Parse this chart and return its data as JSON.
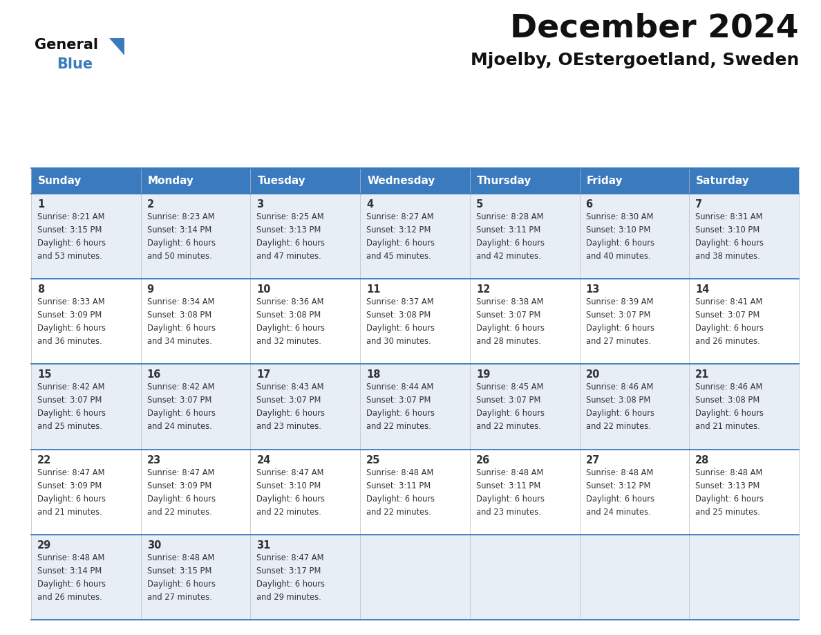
{
  "title": "December 2024",
  "subtitle": "Mjoelby, OEstergoetland, Sweden",
  "header_color": "#3a7abf",
  "header_text_color": "#ffffff",
  "day_names": [
    "Sunday",
    "Monday",
    "Tuesday",
    "Wednesday",
    "Thursday",
    "Friday",
    "Saturday"
  ],
  "cell_bg_row0": "#e8eef5",
  "cell_bg_row1": "#ffffff",
  "cell_bg_row2": "#e8eef5",
  "cell_bg_row3": "#ffffff",
  "cell_bg_row4": "#e8eef5",
  "border_color": "#3a7abf",
  "cell_border_color": "#aaaaaa",
  "text_color": "#333333",
  "days": [
    {
      "day": 1,
      "col": 0,
      "row": 0,
      "sunrise": "8:21 AM",
      "sunset": "3:15 PM",
      "daylight": "6 hours and 53 minutes"
    },
    {
      "day": 2,
      "col": 1,
      "row": 0,
      "sunrise": "8:23 AM",
      "sunset": "3:14 PM",
      "daylight": "6 hours and 50 minutes"
    },
    {
      "day": 3,
      "col": 2,
      "row": 0,
      "sunrise": "8:25 AM",
      "sunset": "3:13 PM",
      "daylight": "6 hours and 47 minutes"
    },
    {
      "day": 4,
      "col": 3,
      "row": 0,
      "sunrise": "8:27 AM",
      "sunset": "3:12 PM",
      "daylight": "6 hours and 45 minutes"
    },
    {
      "day": 5,
      "col": 4,
      "row": 0,
      "sunrise": "8:28 AM",
      "sunset": "3:11 PM",
      "daylight": "6 hours and 42 minutes"
    },
    {
      "day": 6,
      "col": 5,
      "row": 0,
      "sunrise": "8:30 AM",
      "sunset": "3:10 PM",
      "daylight": "6 hours and 40 minutes"
    },
    {
      "day": 7,
      "col": 6,
      "row": 0,
      "sunrise": "8:31 AM",
      "sunset": "3:10 PM",
      "daylight": "6 hours and 38 minutes"
    },
    {
      "day": 8,
      "col": 0,
      "row": 1,
      "sunrise": "8:33 AM",
      "sunset": "3:09 PM",
      "daylight": "6 hours and 36 minutes"
    },
    {
      "day": 9,
      "col": 1,
      "row": 1,
      "sunrise": "8:34 AM",
      "sunset": "3:08 PM",
      "daylight": "6 hours and 34 minutes"
    },
    {
      "day": 10,
      "col": 2,
      "row": 1,
      "sunrise": "8:36 AM",
      "sunset": "3:08 PM",
      "daylight": "6 hours and 32 minutes"
    },
    {
      "day": 11,
      "col": 3,
      "row": 1,
      "sunrise": "8:37 AM",
      "sunset": "3:08 PM",
      "daylight": "6 hours and 30 minutes"
    },
    {
      "day": 12,
      "col": 4,
      "row": 1,
      "sunrise": "8:38 AM",
      "sunset": "3:07 PM",
      "daylight": "6 hours and 28 minutes"
    },
    {
      "day": 13,
      "col": 5,
      "row": 1,
      "sunrise": "8:39 AM",
      "sunset": "3:07 PM",
      "daylight": "6 hours and 27 minutes"
    },
    {
      "day": 14,
      "col": 6,
      "row": 1,
      "sunrise": "8:41 AM",
      "sunset": "3:07 PM",
      "daylight": "6 hours and 26 minutes"
    },
    {
      "day": 15,
      "col": 0,
      "row": 2,
      "sunrise": "8:42 AM",
      "sunset": "3:07 PM",
      "daylight": "6 hours and 25 minutes"
    },
    {
      "day": 16,
      "col": 1,
      "row": 2,
      "sunrise": "8:42 AM",
      "sunset": "3:07 PM",
      "daylight": "6 hours and 24 minutes"
    },
    {
      "day": 17,
      "col": 2,
      "row": 2,
      "sunrise": "8:43 AM",
      "sunset": "3:07 PM",
      "daylight": "6 hours and 23 minutes"
    },
    {
      "day": 18,
      "col": 3,
      "row": 2,
      "sunrise": "8:44 AM",
      "sunset": "3:07 PM",
      "daylight": "6 hours and 22 minutes"
    },
    {
      "day": 19,
      "col": 4,
      "row": 2,
      "sunrise": "8:45 AM",
      "sunset": "3:07 PM",
      "daylight": "6 hours and 22 minutes"
    },
    {
      "day": 20,
      "col": 5,
      "row": 2,
      "sunrise": "8:46 AM",
      "sunset": "3:08 PM",
      "daylight": "6 hours and 22 minutes"
    },
    {
      "day": 21,
      "col": 6,
      "row": 2,
      "sunrise": "8:46 AM",
      "sunset": "3:08 PM",
      "daylight": "6 hours and 21 minutes"
    },
    {
      "day": 22,
      "col": 0,
      "row": 3,
      "sunrise": "8:47 AM",
      "sunset": "3:09 PM",
      "daylight": "6 hours and 21 minutes"
    },
    {
      "day": 23,
      "col": 1,
      "row": 3,
      "sunrise": "8:47 AM",
      "sunset": "3:09 PM",
      "daylight": "6 hours and 22 minutes"
    },
    {
      "day": 24,
      "col": 2,
      "row": 3,
      "sunrise": "8:47 AM",
      "sunset": "3:10 PM",
      "daylight": "6 hours and 22 minutes"
    },
    {
      "day": 25,
      "col": 3,
      "row": 3,
      "sunrise": "8:48 AM",
      "sunset": "3:11 PM",
      "daylight": "6 hours and 22 minutes"
    },
    {
      "day": 26,
      "col": 4,
      "row": 3,
      "sunrise": "8:48 AM",
      "sunset": "3:11 PM",
      "daylight": "6 hours and 23 minutes"
    },
    {
      "day": 27,
      "col": 5,
      "row": 3,
      "sunrise": "8:48 AM",
      "sunset": "3:12 PM",
      "daylight": "6 hours and 24 minutes"
    },
    {
      "day": 28,
      "col": 6,
      "row": 3,
      "sunrise": "8:48 AM",
      "sunset": "3:13 PM",
      "daylight": "6 hours and 25 minutes"
    },
    {
      "day": 29,
      "col": 0,
      "row": 4,
      "sunrise": "8:48 AM",
      "sunset": "3:14 PM",
      "daylight": "6 hours and 26 minutes"
    },
    {
      "day": 30,
      "col": 1,
      "row": 4,
      "sunrise": "8:48 AM",
      "sunset": "3:15 PM",
      "daylight": "6 hours and 27 minutes"
    },
    {
      "day": 31,
      "col": 2,
      "row": 4,
      "sunrise": "8:47 AM",
      "sunset": "3:17 PM",
      "daylight": "6 hours and 29 minutes"
    }
  ],
  "logo_text1": "General",
  "logo_text2": "Blue",
  "logo_color1": "#111111",
  "logo_color2": "#3a7abf",
  "fig_width": 11.88,
  "fig_height": 9.18,
  "dpi": 100
}
